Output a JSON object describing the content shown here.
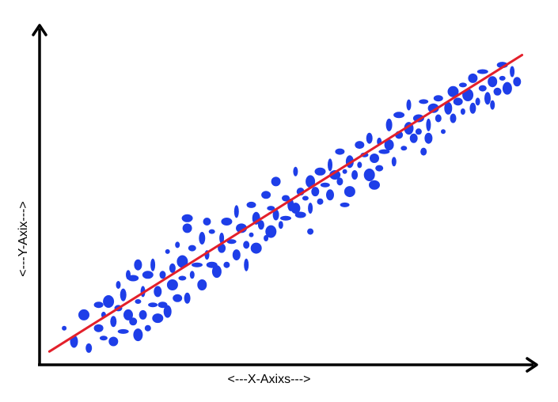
{
  "chart_data": {
    "type": "scatter",
    "title": "",
    "xlabel": "<---X-Axixs--->",
    "ylabel": "<---Y-Axix--->",
    "xlim": [
      0,
      100
    ],
    "ylim": [
      0,
      100
    ],
    "grid": false,
    "legend": "none",
    "axes_style": "arrows",
    "point_color": "#1e3ee8",
    "line_color": "#e3202b",
    "trend_line": {
      "x": [
        2,
        98
      ],
      "y": [
        4,
        93
      ]
    },
    "points": [
      [
        5,
        11
      ],
      [
        7,
        7
      ],
      [
        9,
        15
      ],
      [
        10,
        5
      ],
      [
        12,
        11
      ],
      [
        13,
        15
      ],
      [
        13,
        8
      ],
      [
        14,
        19
      ],
      [
        15,
        13
      ],
      [
        15,
        7
      ],
      [
        16,
        24
      ],
      [
        16,
        17
      ],
      [
        17,
        10
      ],
      [
        17,
        21
      ],
      [
        18,
        15
      ],
      [
        18,
        27
      ],
      [
        19,
        13
      ],
      [
        19,
        26
      ],
      [
        20,
        19
      ],
      [
        20,
        9
      ],
      [
        21,
        22
      ],
      [
        21,
        15
      ],
      [
        22,
        27
      ],
      [
        22,
        11
      ],
      [
        23,
        18
      ],
      [
        23,
        30
      ],
      [
        24,
        22
      ],
      [
        24,
        14
      ],
      [
        25,
        27
      ],
      [
        25,
        18
      ],
      [
        26,
        34
      ],
      [
        26,
        16
      ],
      [
        27,
        24
      ],
      [
        27,
        29
      ],
      [
        28,
        20
      ],
      [
        28,
        36
      ],
      [
        29,
        26
      ],
      [
        29,
        31
      ],
      [
        30,
        20
      ],
      [
        30,
        41
      ],
      [
        31,
        27
      ],
      [
        31,
        35
      ],
      [
        32,
        30
      ],
      [
        33,
        38
      ],
      [
        33,
        24
      ],
      [
        34,
        33
      ],
      [
        34,
        43
      ],
      [
        35,
        30
      ],
      [
        35,
        40
      ],
      [
        36,
        28
      ],
      [
        37,
        38
      ],
      [
        37,
        35
      ],
      [
        38,
        43
      ],
      [
        38,
        30
      ],
      [
        39,
        37
      ],
      [
        40,
        46
      ],
      [
        40,
        33
      ],
      [
        41,
        41
      ],
      [
        42,
        36
      ],
      [
        43,
        48
      ],
      [
        43,
        39
      ],
      [
        44,
        44
      ],
      [
        44,
        35
      ],
      [
        45,
        42
      ],
      [
        46,
        51
      ],
      [
        46,
        38
      ],
      [
        47,
        47
      ],
      [
        47,
        40
      ],
      [
        48,
        45
      ],
      [
        48,
        55
      ],
      [
        49,
        42
      ],
      [
        50,
        50
      ],
      [
        50,
        44
      ],
      [
        51,
        48
      ],
      [
        52,
        47
      ],
      [
        52,
        58
      ],
      [
        53,
        52
      ],
      [
        53,
        45
      ],
      [
        54,
        50
      ],
      [
        55,
        55
      ],
      [
        55,
        47
      ],
      [
        56,
        52
      ],
      [
        57,
        58
      ],
      [
        57,
        49
      ],
      [
        58,
        54
      ],
      [
        59,
        60
      ],
      [
        59,
        51
      ],
      [
        60,
        57
      ],
      [
        61,
        55
      ],
      [
        61,
        64
      ],
      [
        62,
        58
      ],
      [
        63,
        61
      ],
      [
        63,
        52
      ],
      [
        64,
        57
      ],
      [
        65,
        66
      ],
      [
        65,
        60
      ],
      [
        66,
        63
      ],
      [
        67,
        57
      ],
      [
        67,
        68
      ],
      [
        68,
        62
      ],
      [
        69,
        67
      ],
      [
        69,
        59
      ],
      [
        70,
        64
      ],
      [
        71,
        72
      ],
      [
        71,
        66
      ],
      [
        72,
        61
      ],
      [
        73,
        69
      ],
      [
        73,
        75
      ],
      [
        74,
        65
      ],
      [
        75,
        71
      ],
      [
        75,
        78
      ],
      [
        76,
        68
      ],
      [
        77,
        74
      ],
      [
        77,
        70
      ],
      [
        78,
        79
      ],
      [
        79,
        72
      ],
      [
        79,
        68
      ],
      [
        80,
        77
      ],
      [
        81,
        74
      ],
      [
        81,
        80
      ],
      [
        82,
        70
      ],
      [
        83,
        77
      ],
      [
        84,
        82
      ],
      [
        84,
        74
      ],
      [
        85,
        79
      ],
      [
        86,
        76
      ],
      [
        86,
        84
      ],
      [
        87,
        81
      ],
      [
        88,
        77
      ],
      [
        88,
        86
      ],
      [
        89,
        79
      ],
      [
        90,
        83
      ],
      [
        90,
        88
      ],
      [
        91,
        80
      ],
      [
        92,
        85
      ],
      [
        92,
        78
      ],
      [
        93,
        82
      ],
      [
        94,
        90
      ],
      [
        94,
        86
      ],
      [
        95,
        83
      ],
      [
        96,
        88
      ],
      [
        97,
        85
      ],
      [
        30,
        44
      ],
      [
        55,
        40
      ],
      [
        62,
        48
      ],
      [
        42,
        30
      ],
      [
        20,
        30
      ],
      [
        68,
        54
      ],
      [
        78,
        64
      ],
      [
        12,
        18
      ]
    ]
  }
}
